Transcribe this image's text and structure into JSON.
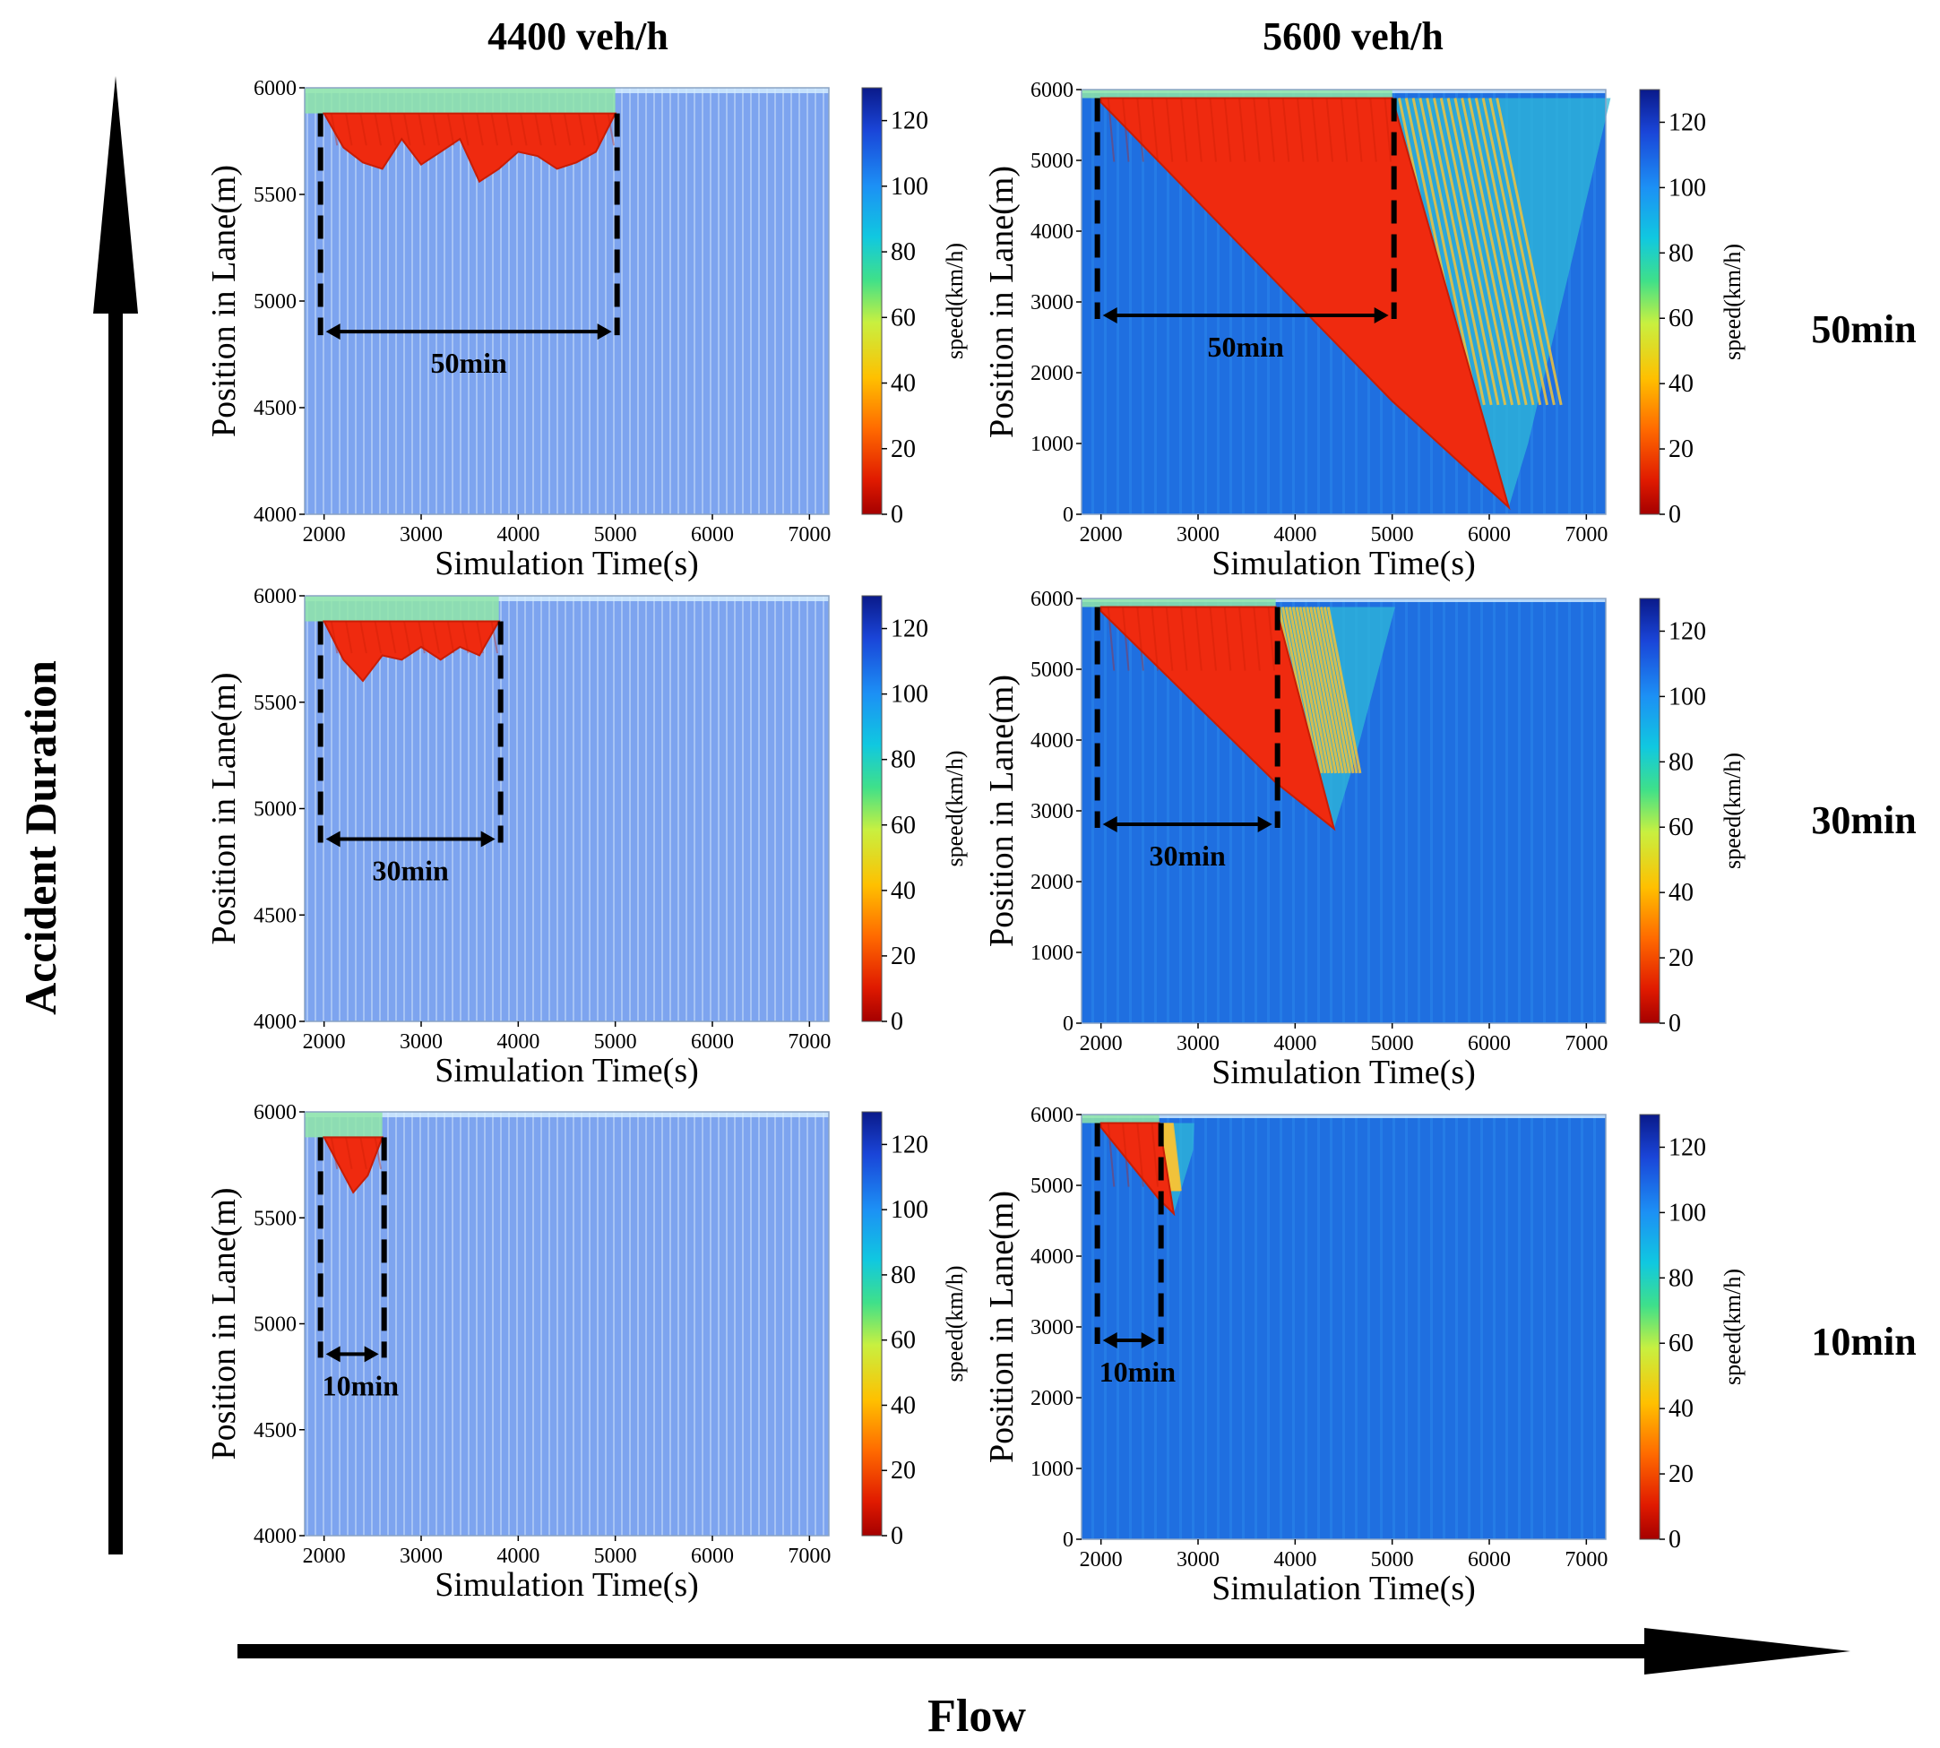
{
  "figure": {
    "col_headers": [
      "4400 veh/h",
      "5600 veh/h"
    ],
    "row_labels": [
      "50min",
      "30min",
      "10min"
    ],
    "y_arrow_label": "Accident Duration",
    "x_arrow_label": "Flow"
  },
  "colors": {
    "background_flow_4400": "#7da4ef",
    "background_flow_5600": "#1f6fe0",
    "congestion": "#ef2a0f",
    "congestion_deep": "#c81d05",
    "shockwave_stripe": "#f2c33a",
    "cap_band": "#8fe6a8",
    "arrow": "#000000"
  },
  "chart_data": [
    {
      "type": "heatmap",
      "row": "50min",
      "col": "4400 veh/h",
      "xlabel": "Simulation Time(s)",
      "ylabel": "Position in Lane(m)",
      "colorbar_label": "speed(km/h)",
      "xlim": [
        1800,
        7200
      ],
      "ylim": [
        4000,
        6000
      ],
      "xticks": [
        2000,
        3000,
        4000,
        5000,
        6000,
        7000
      ],
      "yticks": [
        4000,
        4500,
        5000,
        5500,
        6000
      ],
      "cticks": [
        0,
        20,
        40,
        60,
        80,
        100,
        120
      ],
      "clim": [
        0,
        130
      ],
      "accident_start_s": 2000,
      "accident_end_s": 5000,
      "accident_position_m": 5880,
      "queue_tail": [
        [
          2000,
          5880
        ],
        [
          2200,
          5720
        ],
        [
          2400,
          5650
        ],
        [
          2600,
          5620
        ],
        [
          2800,
          5760
        ],
        [
          3000,
          5640
        ],
        [
          3200,
          5700
        ],
        [
          3400,
          5760
        ],
        [
          3600,
          5560
        ],
        [
          3800,
          5620
        ],
        [
          4000,
          5700
        ],
        [
          4200,
          5680
        ],
        [
          4400,
          5620
        ],
        [
          4600,
          5650
        ],
        [
          4800,
          5700
        ],
        [
          5000,
          5880
        ]
      ],
      "shockwave_line": null,
      "annotation": "50min"
    },
    {
      "type": "heatmap",
      "row": "50min",
      "col": "5600 veh/h",
      "xlabel": "Simulation Time(s)",
      "ylabel": "Position in Lane(m)",
      "colorbar_label": "speed(km/h)",
      "xlim": [
        1800,
        7200
      ],
      "ylim": [
        0,
        6000
      ],
      "xticks": [
        2000,
        3000,
        4000,
        5000,
        6000,
        7000
      ],
      "yticks": [
        0,
        1000,
        2000,
        3000,
        4000,
        5000,
        6000
      ],
      "cticks": [
        0,
        20,
        40,
        60,
        80,
        100,
        120
      ],
      "clim": [
        0,
        130
      ],
      "accident_start_s": 2000,
      "accident_end_s": 5000,
      "accident_position_m": 5880,
      "queue_tail": [
        [
          2000,
          5880
        ],
        [
          5000,
          1600
        ],
        [
          6200,
          100
        ]
      ],
      "shockwave_line": [
        [
          5000,
          5880
        ],
        [
          6200,
          100
        ]
      ],
      "annotation": "50min"
    },
    {
      "type": "heatmap",
      "row": "30min",
      "col": "4400 veh/h",
      "xlabel": "Simulation Time(s)",
      "ylabel": "Position in Lane(m)",
      "colorbar_label": "speed(km/h)",
      "xlim": [
        1800,
        7200
      ],
      "ylim": [
        4000,
        6000
      ],
      "xticks": [
        2000,
        3000,
        4000,
        5000,
        6000,
        7000
      ],
      "yticks": [
        4000,
        4500,
        5000,
        5500,
        6000
      ],
      "cticks": [
        0,
        20,
        40,
        60,
        80,
        100,
        120
      ],
      "clim": [
        0,
        130
      ],
      "accident_start_s": 2000,
      "accident_end_s": 3800,
      "accident_position_m": 5880,
      "queue_tail": [
        [
          2000,
          5880
        ],
        [
          2200,
          5700
        ],
        [
          2400,
          5600
        ],
        [
          2600,
          5720
        ],
        [
          2800,
          5700
        ],
        [
          3000,
          5760
        ],
        [
          3200,
          5700
        ],
        [
          3400,
          5760
        ],
        [
          3600,
          5720
        ],
        [
          3800,
          5880
        ]
      ],
      "shockwave_line": null,
      "annotation": "30min"
    },
    {
      "type": "heatmap",
      "row": "30min",
      "col": "5600 veh/h",
      "xlabel": "Simulation Time(s)",
      "ylabel": "Position in Lane(m)",
      "colorbar_label": "speed(km/h)",
      "xlim": [
        1800,
        7200
      ],
      "ylim": [
        0,
        6000
      ],
      "xticks": [
        2000,
        3000,
        4000,
        5000,
        6000,
        7000
      ],
      "yticks": [
        0,
        1000,
        2000,
        3000,
        4000,
        5000,
        6000
      ],
      "cticks": [
        0,
        20,
        40,
        60,
        80,
        100,
        120
      ],
      "clim": [
        0,
        130
      ],
      "accident_start_s": 2000,
      "accident_end_s": 3800,
      "accident_position_m": 5880,
      "queue_tail": [
        [
          2000,
          5880
        ],
        [
          3800,
          3400
        ],
        [
          4400,
          2750
        ]
      ],
      "shockwave_line": [
        [
          3800,
          5880
        ],
        [
          4400,
          2750
        ]
      ],
      "annotation": "30min"
    },
    {
      "type": "heatmap",
      "row": "10min",
      "col": "4400 veh/h",
      "xlabel": "Simulation Time(s)",
      "ylabel": "Position in Lane(m)",
      "colorbar_label": "speed(km/h)",
      "xlim": [
        1800,
        7200
      ],
      "ylim": [
        4000,
        6000
      ],
      "xticks": [
        2000,
        3000,
        4000,
        5000,
        6000,
        7000
      ],
      "yticks": [
        4000,
        4500,
        5000,
        5500,
        6000
      ],
      "cticks": [
        0,
        20,
        40,
        60,
        80,
        100,
        120
      ],
      "clim": [
        0,
        130
      ],
      "accident_start_s": 2000,
      "accident_end_s": 2600,
      "accident_position_m": 5880,
      "queue_tail": [
        [
          2000,
          5880
        ],
        [
          2150,
          5750
        ],
        [
          2300,
          5620
        ],
        [
          2450,
          5700
        ],
        [
          2600,
          5880
        ]
      ],
      "shockwave_line": null,
      "annotation": "10min"
    },
    {
      "type": "heatmap",
      "row": "10min",
      "col": "5600 veh/h",
      "xlabel": "Simulation Time(s)",
      "ylabel": "Position in Lane(m)",
      "colorbar_label": "speed(km/h)",
      "xlim": [
        1800,
        7200
      ],
      "ylim": [
        0,
        6000
      ],
      "xticks": [
        2000,
        3000,
        4000,
        5000,
        6000,
        7000
      ],
      "yticks": [
        0,
        1000,
        2000,
        3000,
        4000,
        5000,
        6000
      ],
      "cticks": [
        0,
        20,
        40,
        60,
        80,
        100,
        120
      ],
      "clim": [
        0,
        130
      ],
      "accident_start_s": 2000,
      "accident_end_s": 2600,
      "accident_position_m": 5880,
      "queue_tail": [
        [
          2000,
          5880
        ],
        [
          2600,
          4800
        ],
        [
          2750,
          4600
        ]
      ],
      "shockwave_line": [
        [
          2600,
          5880
        ],
        [
          2750,
          4600
        ]
      ],
      "annotation": "10min"
    }
  ]
}
